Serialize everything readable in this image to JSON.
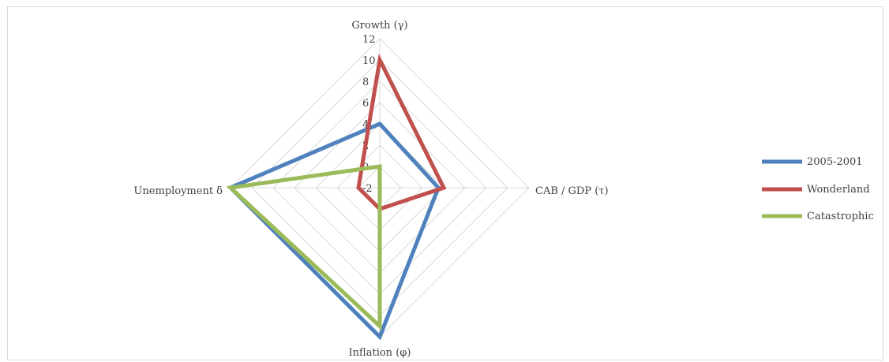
{
  "chart_data": {
    "type": "radar",
    "axes": [
      "Growth (γ)",
      "CAB / GDP (τ)",
      "Inflation (φ)",
      "Unemployment δ"
    ],
    "ticks": [
      "-2",
      "0",
      "2",
      "4",
      "6",
      "8",
      "10",
      "12"
    ],
    "range": [
      -2,
      12
    ],
    "grid": true,
    "legend_position": "right",
    "series": [
      {
        "name": "2005-2001",
        "color": "#4f81bd",
        "values": [
          4,
          3.5,
          12,
          12
        ]
      },
      {
        "name": "Wonderland",
        "color": "#c0504d",
        "values": [
          10,
          4,
          0,
          0
        ]
      },
      {
        "name": "Catastrophic",
        "color": "#9bbb59",
        "values": [
          0,
          -2,
          11,
          12
        ]
      }
    ]
  }
}
